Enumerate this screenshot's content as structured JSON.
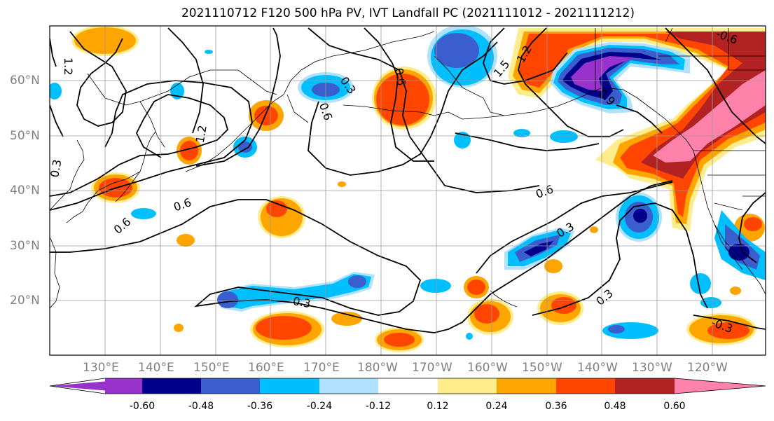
{
  "title": "2021110712 F120 500 hPa PV, IVT Landfall PC (2021111012 - 2021111212)",
  "lat_labels": [
    "60°N",
    "50°N",
    "40°N",
    "30°N",
    "20°N"
  ],
  "lon_labels": [
    "130°E",
    "140°E",
    "150°E",
    "160°E",
    "170°E",
    "180°W",
    "170°W",
    "160°W",
    "150°W",
    "140°W",
    "130°W",
    "120°W"
  ],
  "contour_labels": [
    "1.2",
    "1.2",
    "1.5",
    "1.2",
    "-0.6",
    "0.3",
    "0.6",
    "0.6",
    "0.9",
    "0.6",
    "0.6",
    "0.3",
    "0.6",
    "0.3",
    "0.3",
    "-0.3",
    "0.3"
  ],
  "colorbar": {
    "colors": [
      "#9932CC",
      "#00008B",
      "#3A5ECD",
      "#00BFFF",
      "#B0E2FF",
      "#FFFFFF",
      "#FFEC8B",
      "#FFA500",
      "#FF4500",
      "#B22222",
      "#FF82AB"
    ],
    "ticks": [
      "-0.60",
      "-0.48",
      "-0.36",
      "-0.24",
      "-0.12",
      "0.12",
      "0.24",
      "0.36",
      "0.48",
      "0.60"
    ]
  }
}
